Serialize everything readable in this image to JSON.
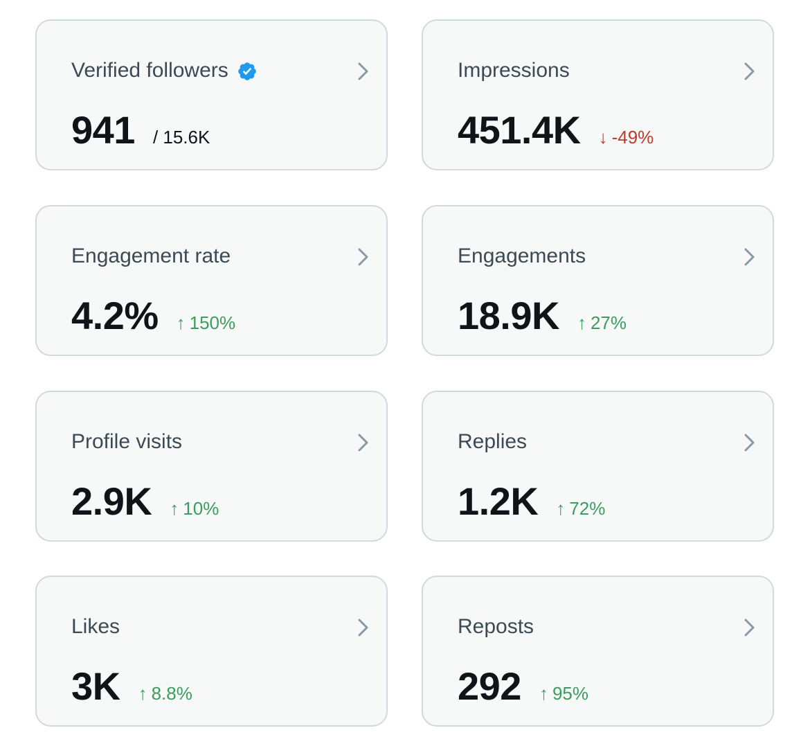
{
  "colors": {
    "card_bg": "#f7f9f9",
    "card_border": "#cfd9de",
    "title": "#3c4a55",
    "value": "#0f1419",
    "up": "#3a9d5d",
    "down": "#c0392b",
    "verified": "#1d9bf0",
    "chevron": "#8899a6"
  },
  "cards": [
    {
      "title": "Verified followers",
      "value": "941",
      "sub": "/ 15.6K",
      "icon": "verified-badge-icon",
      "chevron": "chevron-right-icon"
    },
    {
      "title": "Impressions",
      "value": "451.4K",
      "change": "-49%",
      "direction": "down",
      "arrow": "↓",
      "chevron": "chevron-right-icon"
    },
    {
      "title": "Engagement rate",
      "value": "4.2%",
      "change": "150%",
      "direction": "up",
      "arrow": "↑",
      "chevron": "chevron-right-icon"
    },
    {
      "title": "Engagements",
      "value": "18.9K",
      "change": "27%",
      "direction": "up",
      "arrow": "↑",
      "chevron": "chevron-right-icon"
    },
    {
      "title": "Profile visits",
      "value": "2.9K",
      "change": "10%",
      "direction": "up",
      "arrow": "↑",
      "chevron": "chevron-right-icon"
    },
    {
      "title": "Replies",
      "value": "1.2K",
      "change": "72%",
      "direction": "up",
      "arrow": "↑",
      "chevron": "chevron-right-icon"
    },
    {
      "title": "Likes",
      "value": "3K",
      "change": "8.8%",
      "direction": "up",
      "arrow": "↑",
      "chevron": "chevron-right-icon"
    },
    {
      "title": "Reposts",
      "value": "292",
      "change": "95%",
      "direction": "up",
      "arrow": "↑",
      "chevron": "chevron-right-icon"
    }
  ]
}
